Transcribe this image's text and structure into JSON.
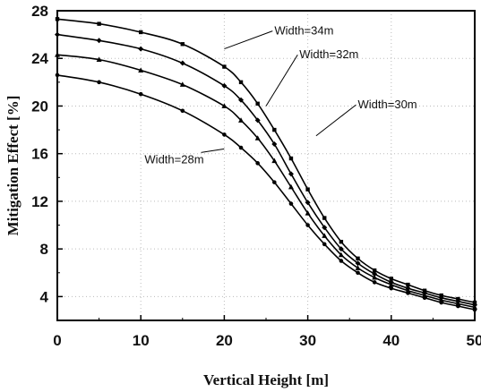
{
  "chart_data": {
    "type": "line",
    "xlabel": "Vertical Height [m]",
    "ylabel": "Mitigation Effect [%]",
    "xlim": [
      0,
      50
    ],
    "ylim": [
      2,
      28
    ],
    "xticks": [
      0,
      10,
      20,
      30,
      40,
      50
    ],
    "yticks": [
      4,
      8,
      12,
      16,
      20,
      24,
      28
    ],
    "grid": "dotted",
    "colors": {
      "line": "#000000",
      "grid": "#bbbbbb"
    },
    "series": [
      {
        "name": "Width=34m",
        "marker": "square",
        "x": [
          0,
          5,
          10,
          15,
          20,
          22,
          24,
          26,
          28,
          30,
          32,
          34,
          36,
          38,
          40,
          42,
          44,
          46,
          48,
          50
        ],
        "y": [
          27.3,
          26.9,
          26.2,
          25.2,
          23.3,
          22.0,
          20.2,
          18.0,
          15.6,
          13.0,
          10.6,
          8.6,
          7.2,
          6.2,
          5.5,
          5.0,
          4.5,
          4.1,
          3.8,
          3.5
        ]
      },
      {
        "name": "Width=32m",
        "marker": "diamond",
        "x": [
          0,
          5,
          10,
          15,
          20,
          22,
          24,
          26,
          28,
          30,
          32,
          34,
          36,
          38,
          40,
          42,
          44,
          46,
          48,
          50
        ],
        "y": [
          26.0,
          25.5,
          24.8,
          23.6,
          21.7,
          20.5,
          18.8,
          16.8,
          14.3,
          11.9,
          9.8,
          8.0,
          6.8,
          5.9,
          5.2,
          4.7,
          4.3,
          3.9,
          3.6,
          3.3
        ]
      },
      {
        "name": "Width=30m",
        "marker": "triangle",
        "x": [
          0,
          5,
          10,
          15,
          20,
          22,
          24,
          26,
          28,
          30,
          32,
          34,
          36,
          38,
          40,
          42,
          44,
          46,
          48,
          50
        ],
        "y": [
          24.3,
          23.9,
          23.0,
          21.8,
          20.0,
          18.8,
          17.3,
          15.4,
          13.2,
          11.0,
          9.1,
          7.5,
          6.4,
          5.6,
          5.0,
          4.5,
          4.1,
          3.7,
          3.4,
          3.1
        ]
      },
      {
        "name": "Width=28m",
        "marker": "circle",
        "x": [
          0,
          5,
          10,
          15,
          20,
          22,
          24,
          26,
          28,
          30,
          32,
          34,
          36,
          38,
          40,
          42,
          44,
          46,
          48,
          50
        ],
        "y": [
          22.6,
          22.0,
          21.0,
          19.6,
          17.6,
          16.5,
          15.2,
          13.6,
          11.8,
          10.0,
          8.4,
          7.0,
          6.0,
          5.2,
          4.7,
          4.3,
          3.9,
          3.5,
          3.2,
          2.9
        ]
      }
    ],
    "annotations": [
      {
        "text": "Width=34m",
        "x": 26,
        "y": 26.0,
        "target_x": 20,
        "target_y": 24.8,
        "anchor": "start"
      },
      {
        "text": "Width=32m",
        "x": 29,
        "y": 24.0,
        "target_x": 25,
        "target_y": 20.0,
        "anchor": "start"
      },
      {
        "text": "Width=30m",
        "x": 36,
        "y": 19.8,
        "target_x": 31,
        "target_y": 17.5,
        "anchor": "start"
      },
      {
        "text": "Width=28m",
        "x": 14,
        "y": 15.2,
        "target_x": 20,
        "target_y": 16.4,
        "anchor": "middle"
      }
    ]
  }
}
